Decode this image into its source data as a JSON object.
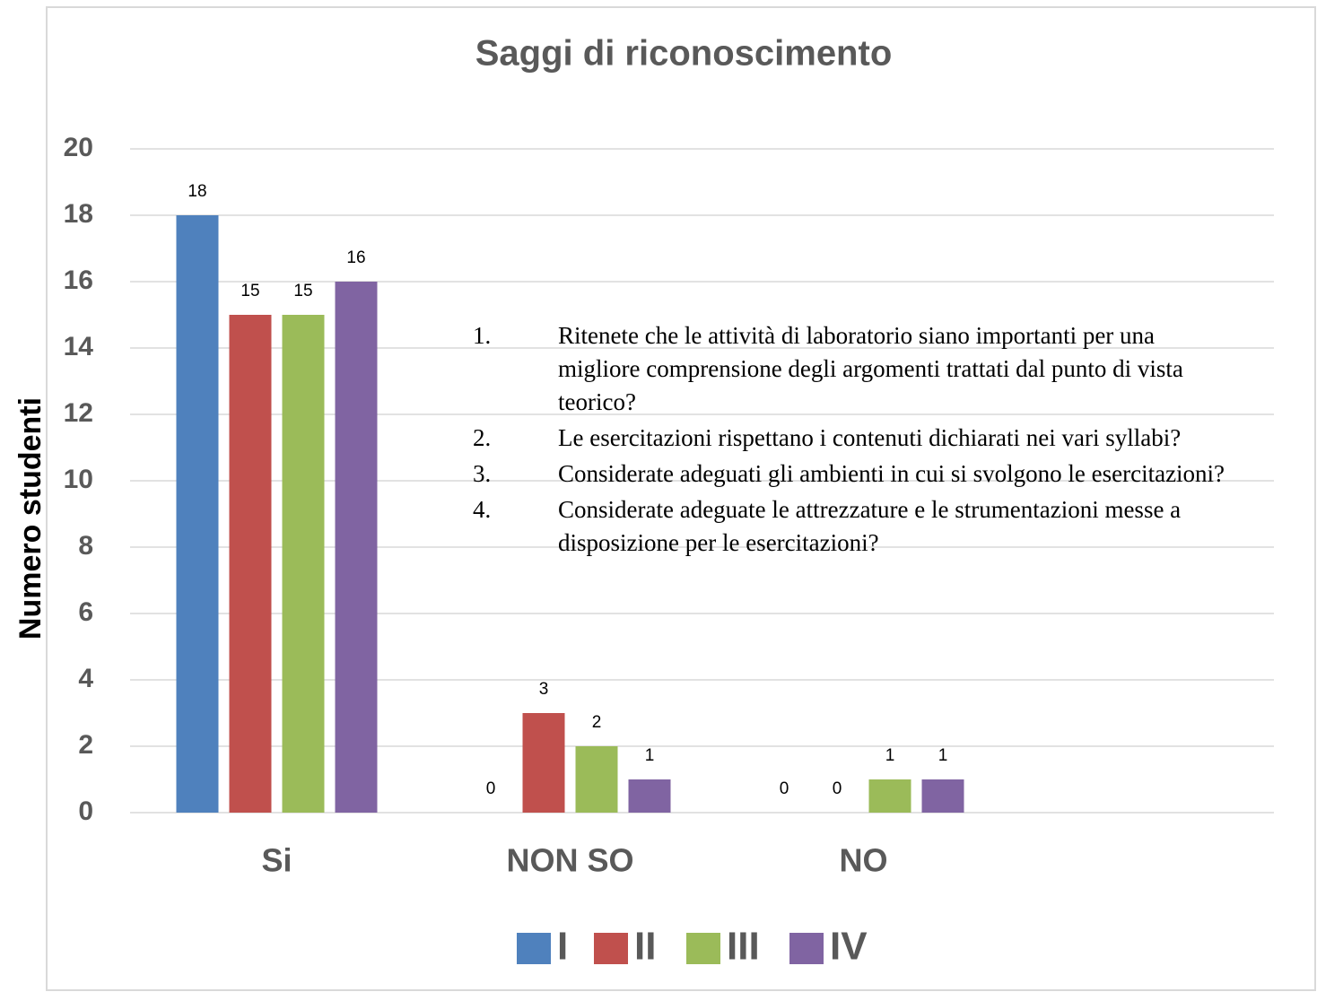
{
  "chart_data": {
    "type": "bar",
    "title": "Saggi di riconoscimento",
    "y_label": "Numero studenti",
    "categories": [
      "Si",
      "NON SO",
      "NO"
    ],
    "series": [
      {
        "name": "I",
        "color": "#4f81bd",
        "values": [
          18,
          0,
          0
        ]
      },
      {
        "name": "II",
        "color": "#c0504d",
        "values": [
          15,
          3,
          0
        ]
      },
      {
        "name": "III",
        "color": "#9bbb59",
        "values": [
          15,
          2,
          1
        ]
      },
      {
        "name": "IV",
        "color": "#8064a2",
        "values": [
          16,
          1,
          1
        ]
      }
    ],
    "ylim": [
      0,
      20
    ],
    "yticks": [
      0,
      2,
      4,
      6,
      8,
      10,
      12,
      14,
      16,
      18,
      20
    ],
    "grid": true,
    "legend": "bottom",
    "annotations": [
      {
        "number": "1.",
        "text": "Ritenete che le attività di laboratorio siano importanti per una migliore comprensione degli argomenti trattati dal punto di vista teorico?"
      },
      {
        "number": "2.",
        "text": "Le esercitazioni rispettano i contenuti dichiarati nei vari syllabi?"
      },
      {
        "number": "3.",
        "text": "Considerate adeguati gli ambienti in cui si svolgono le esercitazioni?"
      },
      {
        "number": "4.",
        "text": "Considerate adeguate le attrezzature e le strumentazioni messe a disposizione per le esercitazioni?"
      }
    ]
  }
}
